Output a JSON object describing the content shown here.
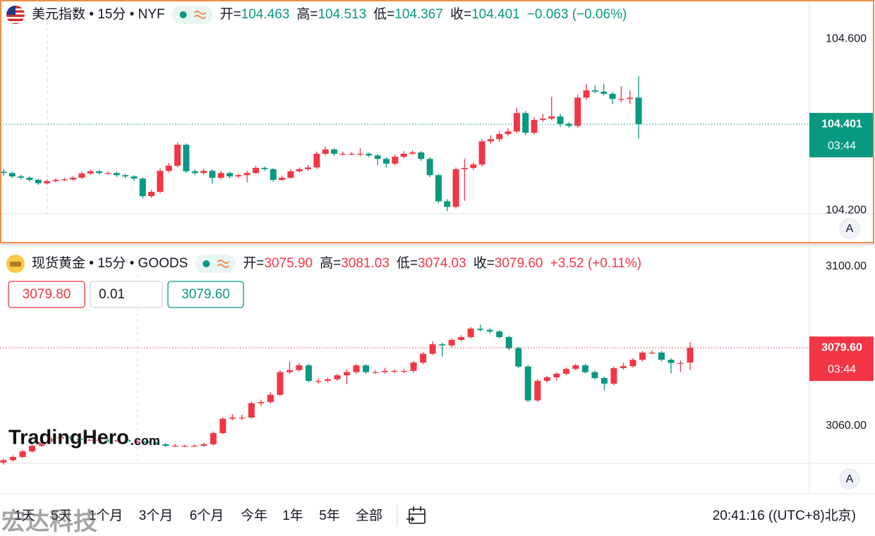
{
  "up_color": "#f23645",
  "down_color": "#089981",
  "panels": [
    {
      "symbol": "美元指数 • 15分 • NYF",
      "fields": [
        {
          "label": "开=",
          "value": "104.463"
        },
        {
          "label": "高=",
          "value": "104.513"
        },
        {
          "label": "低=",
          "value": "104.367"
        },
        {
          "label": "收=",
          "value": "104.401"
        }
      ],
      "change": "−0.063 (−0.06%)",
      "ylim": [
        104.192,
        104.691
      ],
      "yticks": [
        {
          "value": 104.6,
          "label": "104.600"
        },
        {
          "value": 104.2,
          "label": "104.200"
        }
      ],
      "last_price": {
        "value": 104.401,
        "label": "104.401"
      },
      "countdown": "03:44",
      "scale_button": "A",
      "candles": [
        [
          104.29,
          104.296,
          104.28,
          104.287
        ],
        [
          104.287,
          104.29,
          104.275,
          104.279
        ],
        [
          104.279,
          104.283,
          104.272,
          104.276
        ],
        [
          104.276,
          104.279,
          104.267,
          104.271
        ],
        [
          104.271,
          104.274,
          104.259,
          104.263
        ],
        [
          104.263,
          104.272,
          104.26,
          104.268
        ],
        [
          104.268,
          104.275,
          104.265,
          104.271
        ],
        [
          104.271,
          104.276,
          104.268,
          104.272
        ],
        [
          104.272,
          104.28,
          104.269,
          104.276
        ],
        [
          104.276,
          104.29,
          104.273,
          104.286
        ],
        [
          104.286,
          104.295,
          104.283,
          104.291
        ],
        [
          104.291,
          104.294,
          104.283,
          104.287
        ],
        [
          104.287,
          104.291,
          104.283,
          104.287
        ],
        [
          104.287,
          104.29,
          104.278,
          104.282
        ],
        [
          104.282,
          104.285,
          104.275,
          104.279
        ],
        [
          104.279,
          104.282,
          104.268,
          104.274
        ],
        [
          104.274,
          104.277,
          104.228,
          104.233
        ],
        [
          104.233,
          104.248,
          104.229,
          104.243
        ],
        [
          104.243,
          104.298,
          104.24,
          104.292
        ],
        [
          104.292,
          104.31,
          104.288,
          104.304
        ],
        [
          104.304,
          104.358,
          104.3,
          104.353
        ],
        [
          104.353,
          104.356,
          104.287,
          104.291
        ],
        [
          104.291,
          104.296,
          104.282,
          104.287
        ],
        [
          104.287,
          104.297,
          104.283,
          104.292
        ],
        [
          104.292,
          104.296,
          104.262,
          104.276
        ],
        [
          104.276,
          104.292,
          104.272,
          104.287
        ],
        [
          104.287,
          104.29,
          104.274,
          104.279
        ],
        [
          104.279,
          104.286,
          104.275,
          104.282
        ],
        [
          104.282,
          104.292,
          104.265,
          104.287
        ],
        [
          104.287,
          104.304,
          104.284,
          104.299
        ],
        [
          104.299,
          104.302,
          104.292,
          104.296
        ],
        [
          104.296,
          104.299,
          104.266,
          104.271
        ],
        [
          104.271,
          104.281,
          104.268,
          104.276
        ],
        [
          104.276,
          104.296,
          104.273,
          104.291
        ],
        [
          104.291,
          104.3,
          104.288,
          104.296
        ],
        [
          104.296,
          104.305,
          104.292,
          104.3
        ],
        [
          104.3,
          104.337,
          104.296,
          104.332
        ],
        [
          104.332,
          104.348,
          104.328,
          104.342
        ],
        [
          104.342,
          104.345,
          104.327,
          104.332
        ],
        [
          104.332,
          104.337,
          104.328,
          104.332
        ],
        [
          104.332,
          104.336,
          104.328,
          104.332
        ],
        [
          104.332,
          104.345,
          104.326,
          104.332
        ],
        [
          104.332,
          104.335,
          104.324,
          104.328
        ],
        [
          104.328,
          104.331,
          104.305,
          104.32
        ],
        [
          104.32,
          104.324,
          104.3,
          104.309
        ],
        [
          104.309,
          104.33,
          104.305,
          104.325
        ],
        [
          104.325,
          104.338,
          104.321,
          104.332
        ],
        [
          104.332,
          104.34,
          104.329,
          104.335
        ],
        [
          104.335,
          104.338,
          104.315,
          104.32
        ],
        [
          104.32,
          104.324,
          104.277,
          104.282
        ],
        [
          104.282,
          104.285,
          104.216,
          104.221
        ],
        [
          104.221,
          104.226,
          104.198,
          104.208
        ],
        [
          104.208,
          104.3,
          104.204,
          104.296
        ],
        [
          104.296,
          104.32,
          104.222,
          104.299
        ],
        [
          104.299,
          104.312,
          104.294,
          104.307
        ],
        [
          104.307,
          104.366,
          104.302,
          104.361
        ],
        [
          104.361,
          104.375,
          104.356,
          104.366
        ],
        [
          104.366,
          104.384,
          104.36,
          104.378
        ],
        [
          104.378,
          104.392,
          104.374,
          104.384
        ],
        [
          104.384,
          104.44,
          104.38,
          104.427
        ],
        [
          104.427,
          104.432,
          104.375,
          104.381
        ],
        [
          104.381,
          104.418,
          104.377,
          104.411
        ],
        [
          104.411,
          104.425,
          104.406,
          104.414
        ],
        [
          104.414,
          104.465,
          104.41,
          104.419
        ],
        [
          104.419,
          104.425,
          104.395,
          104.402
        ],
        [
          104.402,
          104.406,
          104.392,
          104.397
        ],
        [
          104.397,
          104.47,
          104.393,
          104.463
        ],
        [
          104.463,
          104.495,
          104.458,
          104.48
        ],
        [
          104.48,
          104.492,
          104.473,
          104.477
        ],
        [
          104.477,
          104.495,
          104.468,
          104.472
        ],
        [
          104.472,
          104.476,
          104.448,
          104.46
        ],
        [
          104.46,
          104.49,
          104.452,
          104.46
        ],
        [
          104.46,
          104.48,
          104.448,
          104.463
        ],
        [
          104.463,
          104.513,
          104.367,
          104.401
        ]
      ]
    },
    {
      "symbol": "现货黄金 • 15分 • GOODS",
      "fields": [
        {
          "label": "开=",
          "value": "3075.90"
        },
        {
          "label": "高=",
          "value": "3081.03"
        },
        {
          "label": "低=",
          "value": "3074.03"
        },
        {
          "label": "收=",
          "value": "3079.60"
        }
      ],
      "change": "+3.52 (+0.11%)",
      "order": {
        "sell": "3079.80",
        "qty": "0.01",
        "buy": "3079.60"
      },
      "ylim": [
        3050.6,
        3105.3
      ],
      "yticks": [
        {
          "value": 3100,
          "label": "3100.00"
        },
        {
          "value": 3060,
          "label": "3060.00"
        }
      ],
      "last_price": {
        "value": 3079.6,
        "label": "3079.60"
      },
      "countdown": "03:44",
      "scale_button": "A",
      "candles": [
        [
          3050.8,
          3051.8,
          3050.3,
          3051.4
        ],
        [
          3051.4,
          3052.6,
          3051.0,
          3052.2
        ],
        [
          3052.2,
          3054.0,
          3051.9,
          3053.6
        ],
        [
          3053.6,
          3055.4,
          3053.3,
          3055.0
        ],
        [
          3055.0,
          3056.5,
          3054.7,
          3056.1
        ],
        [
          3056.1,
          3057.2,
          3055.8,
          3056.8
        ],
        [
          3056.8,
          3057.6,
          3056.5,
          3057.2
        ],
        [
          3057.2,
          3057.5,
          3056.5,
          3056.8
        ],
        [
          3056.8,
          3057.1,
          3056.2,
          3056.5
        ],
        [
          3056.5,
          3056.9,
          3056.2,
          3056.5
        ],
        [
          3056.5,
          3056.8,
          3056.1,
          3056.5
        ],
        [
          3056.5,
          3056.8,
          3055.8,
          3056.1
        ],
        [
          3056.1,
          3056.9,
          3055.8,
          3056.5
        ],
        [
          3056.5,
          3056.8,
          3055.8,
          3056.1
        ],
        [
          3056.1,
          3056.5,
          3055.7,
          3056.1
        ],
        [
          3056.1,
          3056.4,
          3055.5,
          3055.8
        ],
        [
          3055.8,
          3056.1,
          3055.1,
          3055.4
        ],
        [
          3055.4,
          3055.7,
          3054.7,
          3055.0
        ],
        [
          3055.0,
          3055.4,
          3054.7,
          3055.0
        ],
        [
          3055.0,
          3055.3,
          3054.7,
          3055.0
        ],
        [
          3055.0,
          3055.4,
          3054.7,
          3055.0
        ],
        [
          3055.0,
          3055.8,
          3054.7,
          3055.4
        ],
        [
          3055.4,
          3058.6,
          3055.1,
          3058.2
        ],
        [
          3058.2,
          3062.2,
          3057.9,
          3061.8
        ],
        [
          3061.8,
          3063.0,
          3061.4,
          3062.1
        ],
        [
          3062.1,
          3062.8,
          3061.5,
          3062.1
        ],
        [
          3062.1,
          3066.1,
          3061.8,
          3065.7
        ],
        [
          3065.7,
          3066.6,
          3065.0,
          3066.0
        ],
        [
          3066.0,
          3068.4,
          3065.6,
          3067.8
        ],
        [
          3067.8,
          3074.0,
          3067.5,
          3073.5
        ],
        [
          3073.5,
          3076.2,
          3073.0,
          3074.0
        ],
        [
          3074.0,
          3075.8,
          3073.6,
          3075.2
        ],
        [
          3075.2,
          3075.6,
          3070.9,
          3071.3
        ],
        [
          3071.3,
          3071.9,
          3070.6,
          3071.3
        ],
        [
          3071.3,
          3072.1,
          3070.9,
          3071.7
        ],
        [
          3071.7,
          3073.1,
          3071.3,
          3072.7
        ],
        [
          3072.7,
          3074.2,
          3070.5,
          3073.5
        ],
        [
          3073.5,
          3075.6,
          3073.1,
          3075.2
        ],
        [
          3075.2,
          3075.5,
          3073.1,
          3073.5
        ],
        [
          3073.5,
          3074.0,
          3073.1,
          3073.5
        ],
        [
          3073.5,
          3074.6,
          3073.1,
          3073.8
        ],
        [
          3073.8,
          3074.2,
          3073.3,
          3073.8
        ],
        [
          3073.8,
          3074.3,
          3073.2,
          3073.8
        ],
        [
          3073.8,
          3076.3,
          3073.4,
          3075.9
        ],
        [
          3075.9,
          3078.5,
          3075.5,
          3078.1
        ],
        [
          3078.1,
          3081.3,
          3077.8,
          3080.5
        ],
        [
          3080.5,
          3080.9,
          3077.4,
          3080.2
        ],
        [
          3080.2,
          3082.0,
          3079.8,
          3081.6
        ],
        [
          3081.6,
          3082.8,
          3081.2,
          3082.3
        ],
        [
          3082.3,
          3084.8,
          3081.9,
          3084.4
        ],
        [
          3084.4,
          3085.4,
          3083.7,
          3084.1
        ],
        [
          3084.1,
          3084.5,
          3083.2,
          3083.7
        ],
        [
          3083.7,
          3084.1,
          3081.9,
          3082.3
        ],
        [
          3082.3,
          3082.7,
          3079.1,
          3079.5
        ],
        [
          3079.5,
          3079.9,
          3074.5,
          3074.9
        ],
        [
          3074.9,
          3075.3,
          3066.0,
          3066.4
        ],
        [
          3066.4,
          3071.7,
          3066.0,
          3071.3
        ],
        [
          3071.3,
          3072.6,
          3070.9,
          3072.2
        ],
        [
          3072.2,
          3073.5,
          3071.4,
          3073.1
        ],
        [
          3073.1,
          3074.7,
          3072.7,
          3074.3
        ],
        [
          3074.3,
          3075.6,
          3073.9,
          3075.2
        ],
        [
          3075.2,
          3075.6,
          3073.1,
          3073.5
        ],
        [
          3073.5,
          3073.9,
          3071.6,
          3072.0
        ],
        [
          3072.0,
          3072.4,
          3068.9,
          3070.6
        ],
        [
          3070.6,
          3074.9,
          3070.2,
          3074.5
        ],
        [
          3074.5,
          3075.8,
          3074.1,
          3075.0
        ],
        [
          3075.0,
          3077.0,
          3074.6,
          3076.6
        ],
        [
          3076.6,
          3078.8,
          3076.2,
          3078.4
        ],
        [
          3078.4,
          3079.0,
          3078.0,
          3078.4
        ],
        [
          3078.4,
          3078.8,
          3076.2,
          3076.6
        ],
        [
          3076.6,
          3077.0,
          3073.2,
          3075.8
        ],
        [
          3075.8,
          3076.4,
          3073.5,
          3075.8
        ],
        [
          3075.9,
          3081.03,
          3074.03,
          3079.6
        ]
      ]
    }
  ],
  "toolbar": {
    "ranges": [
      "1天",
      "5天",
      "1个月",
      "3个月",
      "6个月",
      "今年",
      "1年",
      "5年",
      "全部"
    ],
    "clock": "20:41:16 ((UTC+8)北京)"
  },
  "watermarks": {
    "brand": "TradingHero",
    "brand_suffix": ".com",
    "overlay": "宏达科技"
  }
}
